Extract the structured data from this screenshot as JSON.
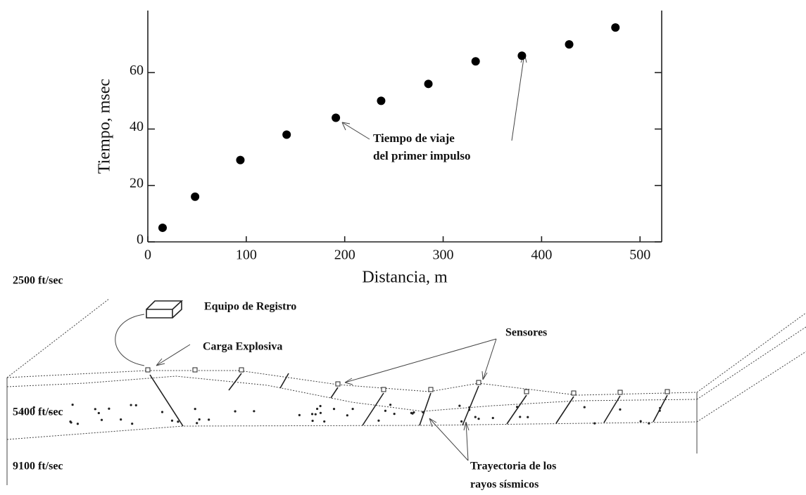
{
  "chart_data": {
    "type": "scatter",
    "xlabel": "Distancia, m",
    "ylabel": "Tiempo, msec",
    "x": [
      15,
      48,
      94,
      141,
      191,
      237,
      285,
      333,
      380,
      428,
      475
    ],
    "values": [
      5,
      16,
      29,
      38,
      44,
      50,
      56,
      64,
      66,
      70,
      76
    ],
    "color": "#000000",
    "xlim": [
      0,
      522
    ],
    "ylim": [
      0,
      82
    ],
    "xticks": [
      0,
      100,
      200,
      300,
      400,
      500
    ],
    "yticks": [
      0,
      20,
      40,
      60
    ],
    "annotation": [
      "Tiempo de viaje",
      "del primer impulso"
    ]
  },
  "diagram": {
    "labels": [
      "2500 ft/sec",
      "Equipo de Registro",
      "Carga Explosiva",
      "Sensores",
      "5400 ft/sec",
      "9100 ft/sec",
      "Trayectoria de los",
      "rayos sísmicos"
    ]
  }
}
